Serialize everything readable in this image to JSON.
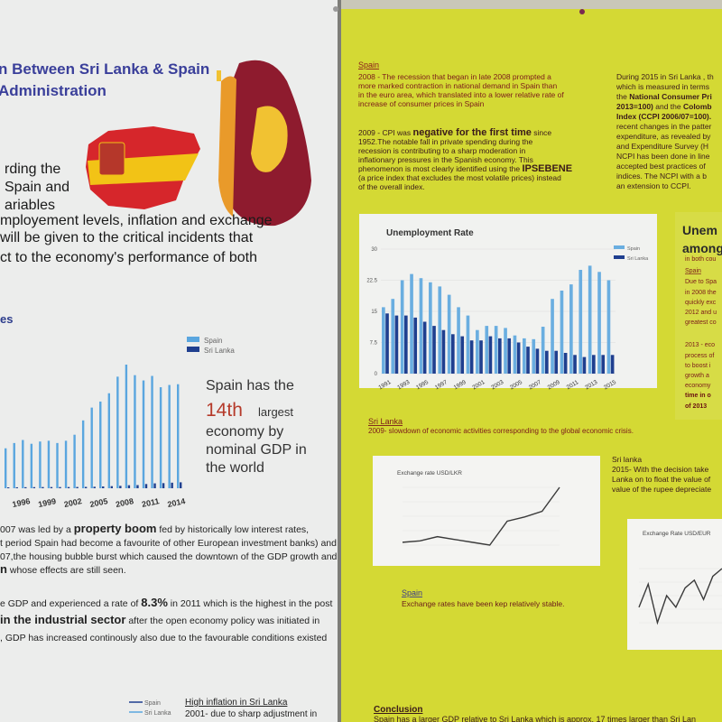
{
  "left_poster": {
    "title_lines": [
      "n Between Sri Lanka & Spain",
      "Administration"
    ],
    "intro_lines": [
      "rding the",
      "Spain and",
      "ariables",
      "mployement levels, inflation and exchange",
      " will be given to the critical incidents that",
      "ct to the economy's performance of both"
    ],
    "section_heading": "es",
    "gdp_chart": {
      "type": "bar",
      "categories": [
        null,
        null,
        "1996",
        null,
        null,
        "1999",
        null,
        null,
        "2002",
        null,
        null,
        "2005",
        null,
        null,
        "2008",
        null,
        null,
        "2011",
        null,
        null,
        "2014"
      ],
      "series": [
        {
          "name": "Spain",
          "color": "#5aa6df",
          "values": [
            530,
            600,
            640,
            590,
            620,
            630,
            600,
            630,
            710,
            900,
            1070,
            1150,
            1260,
            1480,
            1640,
            1500,
            1430,
            1490,
            1340,
            1370,
            1380
          ]
        },
        {
          "name": "Sri Lanka",
          "color": "#1f3f8f",
          "values": [
            12,
            13,
            14,
            15,
            16,
            16,
            16,
            16,
            17,
            18,
            20,
            24,
            28,
            32,
            40,
            42,
            56,
            65,
            68,
            74,
            79
          ]
        }
      ]
    },
    "callout": {
      "lead": "Spain has the",
      "rank": "14th",
      "rest": [
        "largest",
        "economy by",
        "nominal GDP in",
        "the world"
      ]
    },
    "paragraph_1": [
      [
        "007 was led by a ",
        {
          "text": "property boom",
          "strong": true
        },
        " fed by historically low interest rates,"
      ],
      [
        "t period Spain had become a favourite of other European investment banks) and"
      ],
      [
        "07,the housing bubble burst which caused the downtown of the GDP growth and"
      ],
      [
        {
          "text": "n",
          "strong": true
        },
        " whose effects are still seen."
      ]
    ],
    "paragraph_2": [
      [
        "e GDP and experienced a rate of ",
        {
          "text": "8.3%",
          "strong": true
        },
        " in 2011 which is the highest in the post"
      ],
      [
        {
          "text": " in the industrial sector",
          "strong": true
        },
        " after the open economy policy was initiated in"
      ],
      [
        ", GDP has increased continously also due to the favourable conditions existed"
      ]
    ],
    "inflation_legend": [
      "Spain",
      "Sri Lanka"
    ],
    "inflation_heading": "High inflation in Sri Lanka",
    "inflation_text": "2001- due to sharp adjustment in"
  },
  "right_poster": {
    "spain_heading": "Spain",
    "spain_2008": [
      "2008 - The recession that began in late 2008 prompted a",
      "more marked contraction in national demand in Spain than",
      "in the euro area, which translated into a lower relative rate of",
      "increase of consumer prices in Spain"
    ],
    "spain_2009": [
      [
        "2009 - CPI was ",
        {
          "text": "negative for the first time",
          "strong": true
        },
        " since"
      ],
      [
        "1952.The notable fall in private spending during the"
      ],
      [
        "recession is contributing to a sharp moderation in"
      ],
      [
        "inflationary pressures in the Spanish economy. This"
      ],
      [
        "phenomenon is most clearly identified using the ",
        {
          "text": "IPSEBENE",
          "strong": true
        }
      ],
      [
        "(a price index that excludes the most volatile prices) instead"
      ],
      [
        "of the overall index."
      ]
    ],
    "srilanka_2015": [
      [
        "During 2015 in Sri Lanka , th"
      ],
      [
        "which is measured in terms"
      ],
      [
        "the ",
        {
          "text": "National Consumer Pri",
          "strong": true
        }
      ],
      [
        {
          "text": "2013=100)",
          "strong": true
        },
        " and the ",
        {
          "text": "Colomb",
          "strong": true
        }
      ],
      [
        {
          "text": "Index (CCPI 2006/07=100).",
          "strong": true
        }
      ],
      [
        "recent changes in the patter"
      ],
      [
        "expenditure, as revealed by"
      ],
      [
        "and Expenditure Survey (H"
      ],
      [
        "NCPI has been done in line"
      ],
      [
        "accepted best practices of"
      ],
      [
        "indices. The NCPI with a b"
      ],
      [
        "an extension to CCPI."
      ]
    ],
    "unemployment_chart": {
      "type": "bar",
      "title": "Unemployment Rate",
      "categories": [
        "1991",
        null,
        "1993",
        null,
        "1995",
        null,
        "1997",
        null,
        "1999",
        null,
        "2001",
        null,
        "2003",
        null,
        "2005",
        null,
        "2007",
        null,
        "2009",
        null,
        "2011",
        null,
        "2013",
        null,
        "2015"
      ],
      "series": [
        {
          "name": "Spain",
          "color": "#6aaee0",
          "values": [
            16,
            18,
            22.5,
            24,
            23,
            22,
            21,
            19,
            16,
            14,
            10.5,
            11.5,
            11.5,
            11,
            9.2,
            8.5,
            8.3,
            11.3,
            18,
            20,
            21.5,
            25,
            26,
            24.5,
            22.5
          ]
        },
        {
          "name": "Sri Lanka",
          "color": "#1f3f8f",
          "values": [
            14.5,
            14,
            14,
            13.5,
            12.5,
            11.5,
            10.5,
            9.5,
            9,
            8,
            8,
            9,
            8.5,
            8.5,
            7.5,
            6.5,
            6,
            5.5,
            5.5,
            5,
            4.5,
            4,
            4.5,
            4.5,
            4.5
          ]
        }
      ],
      "ylim": [
        0,
        30
      ],
      "yticks": [
        0,
        7.5,
        15,
        22.5,
        30
      ],
      "grid": true
    },
    "unemployment_side": {
      "heading": [
        "Unem",
        "among"
      ],
      "lines": [
        "in both cou",
        "Spain",
        "Due to Spa",
        "in 2008 the",
        "quickly exc",
        "2012 and u",
        "greatest co",
        "2013 - eco",
        "process of",
        "to boost i",
        "growth a",
        "economy",
        "time in o",
        "of 2013"
      ]
    },
    "srilanka_heading": "Sri Lanka",
    "srilanka_2009": "2009- slowdown of economic activities corresponding to the global economic crisis.",
    "lkr_chart": {
      "type": "line",
      "title": "Exchange rate USD/LKR",
      "color": "#3a3a3a",
      "values": [
        113,
        114,
        117,
        115,
        113,
        111,
        128,
        131,
        135,
        152
      ]
    },
    "srilanka_2015_rate": [
      "Sri lanka",
      "2015- With the decision take",
      "Lanka on to float the value of",
      "value of the rupee depreciate"
    ],
    "eur_chart": {
      "type": "line",
      "title": "Exchange Rate USD/EUR",
      "color": "#3a3a3a",
      "values": [
        0.72,
        0.78,
        0.68,
        0.75,
        0.72,
        0.77,
        0.79,
        0.74,
        0.8,
        0.82
      ]
    },
    "spain_rate_heading": "Spain",
    "spain_rate_text": "Exchange rates have been kep relatively stable.",
    "conclusion_heading": "Conclusion",
    "conclusion_text": "Spain has a larger GDP relative to Sri Lanka which is approx. 17 times larger than Sri Lan"
  }
}
